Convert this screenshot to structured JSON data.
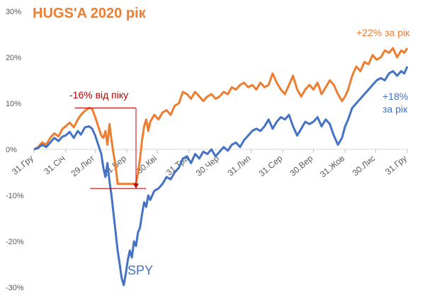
{
  "chart_data": {
    "type": "line",
    "title": "HUGS'A 2020 рік",
    "xlabel": "",
    "ylabel": "",
    "ylim": [
      -30,
      30
    ],
    "y_ticks": [
      30,
      20,
      10,
      0,
      -10,
      -20,
      -30
    ],
    "y_tick_labels": [
      "30%",
      "20%",
      "10%",
      "0%",
      "-10%",
      "-20%",
      "-30%"
    ],
    "x_ticks": [
      0,
      31,
      60,
      91,
      121,
      152,
      182,
      213,
      244,
      274,
      305,
      335,
      366
    ],
    "x_tick_labels": [
      "31.Гру",
      "31.Січ",
      "29.Лют",
      "31.Бер",
      "30.Кві",
      "31.Тра",
      "30.Чер",
      "31.Лип",
      "31.Сер",
      "30.Вер",
      "31.Жов",
      "30.Лис",
      "31.Гру"
    ],
    "grid": false,
    "series": [
      {
        "color": "#ED7D31",
        "points": [
          [
            0,
            0
          ],
          [
            4,
            0.5
          ],
          [
            8,
            1.5
          ],
          [
            12,
            1
          ],
          [
            16,
            2.5
          ],
          [
            20,
            3.5
          ],
          [
            24,
            2.8
          ],
          [
            28,
            4.5
          ],
          [
            31,
            5
          ],
          [
            35,
            5.8
          ],
          [
            39,
            4.8
          ],
          [
            43,
            6.5
          ],
          [
            46,
            7.5
          ],
          [
            50,
            8.4
          ],
          [
            54,
            9
          ],
          [
            57,
            8.8
          ],
          [
            60,
            7
          ],
          [
            63,
            5
          ],
          [
            66,
            3
          ],
          [
            68,
            2.5
          ],
          [
            70,
            4
          ],
          [
            72,
            1
          ],
          [
            74,
            5.5
          ],
          [
            76,
            2
          ],
          [
            78,
            -1
          ],
          [
            80,
            -3.5
          ],
          [
            82,
            -7.5
          ],
          [
            91,
            -7.5
          ],
          [
            100,
            -7.5
          ],
          [
            102,
            -5
          ],
          [
            104,
            -2
          ],
          [
            106,
            2
          ],
          [
            108,
            5
          ],
          [
            110,
            6.5
          ],
          [
            112,
            4
          ],
          [
            114,
            6
          ],
          [
            118,
            7.5
          ],
          [
            122,
            6.5
          ],
          [
            126,
            8
          ],
          [
            130,
            8.5
          ],
          [
            134,
            7.5
          ],
          [
            138,
            9.5
          ],
          [
            142,
            10
          ],
          [
            146,
            12.5
          ],
          [
            150,
            12
          ],
          [
            154,
            11
          ],
          [
            158,
            12.5
          ],
          [
            162,
            11.5
          ],
          [
            166,
            10.5
          ],
          [
            170,
            11.5
          ],
          [
            174,
            12
          ],
          [
            178,
            11
          ],
          [
            182,
            11.5
          ],
          [
            186,
            12.5
          ],
          [
            190,
            12
          ],
          [
            194,
            13.5
          ],
          [
            198,
            13
          ],
          [
            202,
            14
          ],
          [
            206,
            14.5
          ],
          [
            210,
            13.5
          ],
          [
            214,
            14
          ],
          [
            218,
            13
          ],
          [
            222,
            14.5
          ],
          [
            226,
            13.5
          ],
          [
            230,
            14
          ],
          [
            234,
            16.5
          ],
          [
            238,
            14.5
          ],
          [
            242,
            13
          ],
          [
            246,
            12
          ],
          [
            250,
            14
          ],
          [
            254,
            16
          ],
          [
            258,
            13
          ],
          [
            262,
            11.5
          ],
          [
            266,
            13
          ],
          [
            270,
            14
          ],
          [
            274,
            13
          ],
          [
            278,
            14.5
          ],
          [
            282,
            12
          ],
          [
            286,
            13.5
          ],
          [
            290,
            15
          ],
          [
            294,
            14
          ],
          [
            298,
            12
          ],
          [
            302,
            10.5
          ],
          [
            305,
            11.5
          ],
          [
            308,
            13
          ],
          [
            312,
            16
          ],
          [
            316,
            18
          ],
          [
            320,
            17
          ],
          [
            324,
            19
          ],
          [
            328,
            18.5
          ],
          [
            332,
            20.5
          ],
          [
            336,
            19.5
          ],
          [
            340,
            20
          ],
          [
            344,
            21.5
          ],
          [
            348,
            21
          ],
          [
            352,
            22
          ],
          [
            356,
            20
          ],
          [
            360,
            21.5
          ],
          [
            363,
            21
          ],
          [
            366,
            22
          ]
        ]
      },
      {
        "name": "SPY",
        "color": "#4472C4",
        "points": [
          [
            0,
            0
          ],
          [
            4,
            0.3
          ],
          [
            8,
            1
          ],
          [
            12,
            0.5
          ],
          [
            16,
            1.5
          ],
          [
            20,
            2.5
          ],
          [
            24,
            1.8
          ],
          [
            28,
            2.8
          ],
          [
            31,
            3
          ],
          [
            35,
            3.8
          ],
          [
            39,
            2.5
          ],
          [
            43,
            4
          ],
          [
            46,
            3.2
          ],
          [
            50,
            4.8
          ],
          [
            54,
            5
          ],
          [
            57,
            4.5
          ],
          [
            60,
            3
          ],
          [
            63,
            1
          ],
          [
            66,
            -1
          ],
          [
            68,
            -4
          ],
          [
            70,
            -6
          ],
          [
            72,
            -3
          ],
          [
            74,
            -7
          ],
          [
            76,
            -10
          ],
          [
            78,
            -14
          ],
          [
            80,
            -18
          ],
          [
            82,
            -22
          ],
          [
            84,
            -25
          ],
          [
            86,
            -28
          ],
          [
            88,
            -29.5
          ],
          [
            90,
            -27
          ],
          [
            92,
            -24
          ],
          [
            94,
            -22
          ],
          [
            96,
            -23.5
          ],
          [
            98,
            -20
          ],
          [
            100,
            -21
          ],
          [
            102,
            -18
          ],
          [
            104,
            -17
          ],
          [
            106,
            -14
          ],
          [
            108,
            -11.5
          ],
          [
            110,
            -12.5
          ],
          [
            112,
            -10
          ],
          [
            114,
            -11
          ],
          [
            118,
            -9
          ],
          [
            122,
            -8.5
          ],
          [
            126,
            -7.5
          ],
          [
            130,
            -6
          ],
          [
            134,
            -6.5
          ],
          [
            138,
            -5
          ],
          [
            142,
            -4
          ],
          [
            146,
            -2
          ],
          [
            150,
            -1.5
          ],
          [
            154,
            -3
          ],
          [
            158,
            -1
          ],
          [
            162,
            -2
          ],
          [
            166,
            -0.5
          ],
          [
            170,
            -1
          ],
          [
            174,
            0
          ],
          [
            178,
            -1.5
          ],
          [
            182,
            -0.5
          ],
          [
            186,
            0.5
          ],
          [
            190,
            -0.3
          ],
          [
            194,
            1
          ],
          [
            198,
            1.5
          ],
          [
            202,
            0.5
          ],
          [
            206,
            2
          ],
          [
            210,
            3
          ],
          [
            214,
            4
          ],
          [
            218,
            4.5
          ],
          [
            222,
            4
          ],
          [
            226,
            5
          ],
          [
            230,
            6.5
          ],
          [
            234,
            4.5
          ],
          [
            238,
            6
          ],
          [
            242,
            7
          ],
          [
            246,
            6.5
          ],
          [
            250,
            7.5
          ],
          [
            254,
            5
          ],
          [
            258,
            3
          ],
          [
            262,
            4.5
          ],
          [
            266,
            6
          ],
          [
            270,
            5.5
          ],
          [
            274,
            6
          ],
          [
            278,
            7
          ],
          [
            282,
            5
          ],
          [
            286,
            6.5
          ],
          [
            290,
            5.5
          ],
          [
            294,
            3
          ],
          [
            298,
            1
          ],
          [
            302,
            2.5
          ],
          [
            305,
            5
          ],
          [
            308,
            6.5
          ],
          [
            312,
            9
          ],
          [
            316,
            10
          ],
          [
            320,
            11
          ],
          [
            324,
            12
          ],
          [
            328,
            13
          ],
          [
            332,
            14
          ],
          [
            336,
            15
          ],
          [
            340,
            15.5
          ],
          [
            344,
            15
          ],
          [
            348,
            16.5
          ],
          [
            352,
            17
          ],
          [
            356,
            16
          ],
          [
            360,
            17
          ],
          [
            363,
            16.5
          ],
          [
            366,
            18
          ]
        ]
      }
    ],
    "annotations": [
      {
        "text": "+22% за рік",
        "color": "#ED7D31"
      },
      {
        "text": "+18%",
        "color": "#4472C4"
      },
      {
        "text": "за рік",
        "color": "#4472C4"
      },
      {
        "text": "-16% від піку",
        "color": "#C00000"
      },
      {
        "text": "SPY",
        "color": "#4472C4"
      }
    ],
    "drawdown_color": "#C00000"
  }
}
